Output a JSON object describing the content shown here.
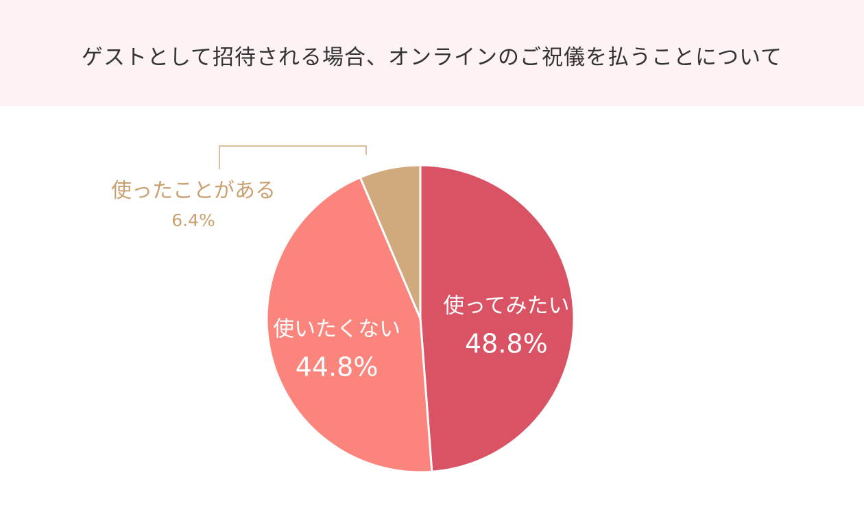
{
  "title": "ゲストとして招待される場合、オンラインのご祝儀を払うことについて",
  "colors": {
    "header_bg": "#fdf3f4",
    "slice_1": "#d95364",
    "slice_2": "#fb857d",
    "slice_3": "#d0a97c",
    "inside_label": "#ffffff",
    "outside_label": "#c9a171"
  },
  "chart_data": {
    "type": "pie",
    "title": "ゲストとして招待される場合、オンラインのご祝儀を払うことについて",
    "start_angle": "12 o'clock",
    "direction": "clockwise",
    "slices": [
      {
        "label": "使ってみたい",
        "value": 48.8,
        "value_label": "48.8%",
        "color": "#d95364",
        "label_position": "inside"
      },
      {
        "label": "使いたくない",
        "value": 44.8,
        "value_label": "44.8%",
        "color": "#fb857d",
        "label_position": "inside"
      },
      {
        "label": "使ったことがある",
        "value": 6.4,
        "value_label": "6.4%",
        "color": "#d0a97c",
        "label_position": "outside-callout"
      }
    ]
  }
}
